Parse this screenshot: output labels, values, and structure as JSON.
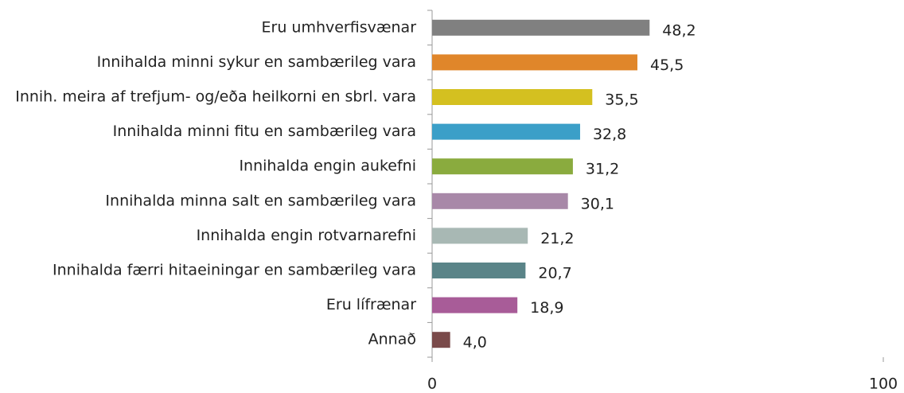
{
  "chart_data": {
    "type": "bar",
    "orientation": "horizontal",
    "categories": [
      "Eru umhverfisvænar",
      "Innihalda minni sykur en sambærileg vara",
      "Innih. meira af trefjum- og/eða heilkorni en sbrl. vara",
      "Innihalda minni fitu en sambærileg vara",
      "Innihalda engin aukefni",
      "Innihalda minna salt en sambærileg vara",
      "Innihalda engin rotvarnarefni",
      "Innihalda færri hitaeiningar en sambærileg vara",
      "Eru lífrænar",
      "Annað"
    ],
    "values": [
      48.2,
      45.5,
      35.5,
      32.8,
      31.2,
      30.1,
      21.2,
      20.7,
      18.9,
      4.0
    ],
    "value_labels": [
      "48,2",
      "45,5",
      "35,5",
      "32,8",
      "31,2",
      "30,1",
      "21,2",
      "20,7",
      "18,9",
      "4,0"
    ],
    "colors": [
      "#808080",
      "#e0862a",
      "#d4c020",
      "#3b9fc8",
      "#8aab3e",
      "#a888a8",
      "#a8b8b4",
      "#5a8488",
      "#a85c98",
      "#7a4a4a"
    ],
    "xlim": [
      0,
      100
    ],
    "xticks": [
      0,
      100
    ]
  }
}
